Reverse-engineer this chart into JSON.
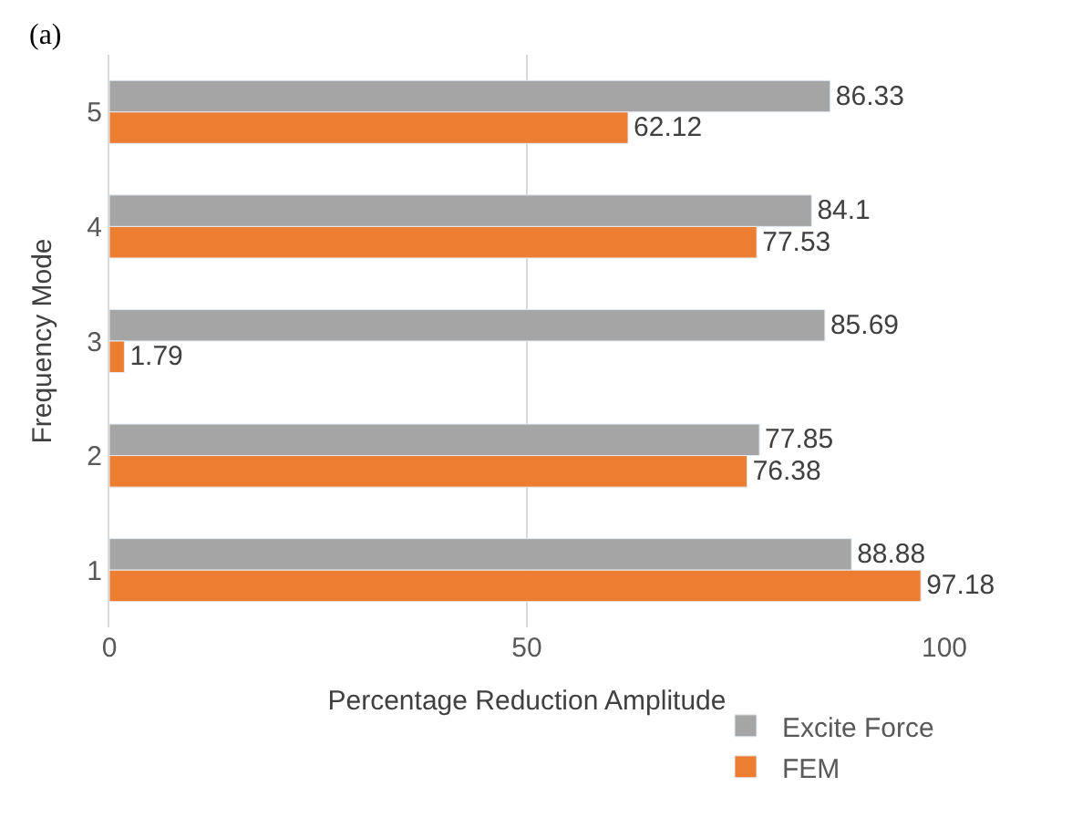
{
  "chart_data": {
    "type": "bar",
    "orientation": "horizontal",
    "xlabel": "Percentage Reduction Amplitude",
    "ylabel": "Frequency Mode",
    "annotations": [
      "(a)"
    ],
    "categories": [
      "5",
      "4",
      "3",
      "2",
      "1"
    ],
    "series": [
      {
        "name": "Excite Force",
        "color": "#a5a5a5",
        "values": [
          86.33,
          84.1,
          85.69,
          77.85,
          88.88
        ]
      },
      {
        "name": "FEM",
        "color": "#ed7d31",
        "values": [
          62.12,
          77.53,
          1.79,
          76.38,
          97.18
        ]
      }
    ],
    "xlim": [
      0,
      100
    ],
    "xticks": [
      0,
      50,
      100
    ],
    "grid": "x",
    "legend": "bottom right",
    "data_labels": true
  }
}
